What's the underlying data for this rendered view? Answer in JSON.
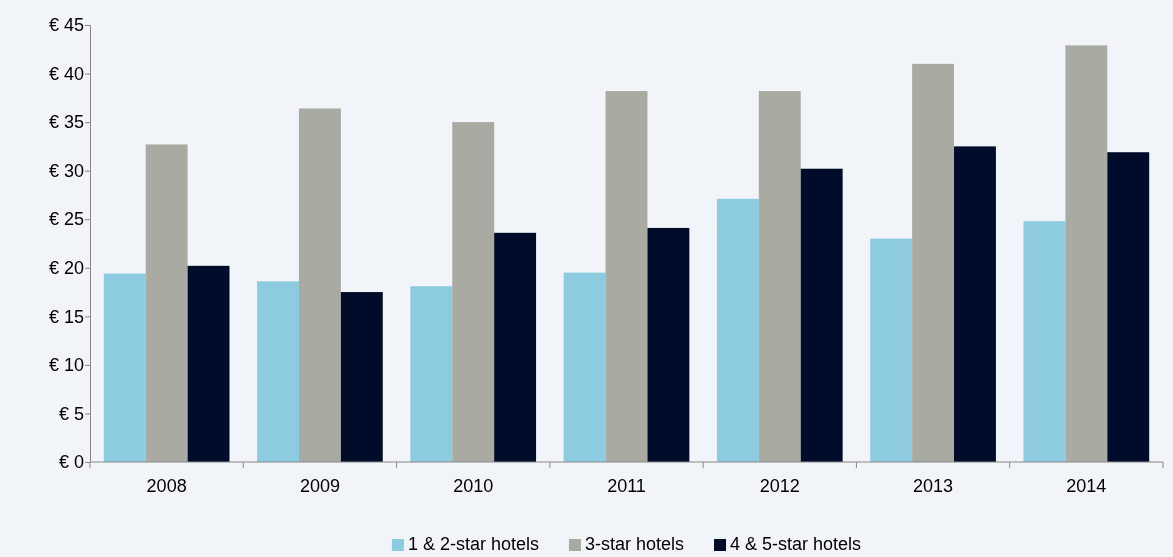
{
  "chart_data": {
    "type": "bar",
    "categories": [
      "2008",
      "2009",
      "2010",
      "2011",
      "2012",
      "2013",
      "2014"
    ],
    "series": [
      {
        "name": "1 & 2-star hotels",
        "color": "#8ccbe0",
        "values": [
          19.4,
          18.6,
          18.1,
          19.5,
          27.1,
          23.0,
          24.8
        ]
      },
      {
        "name": "3-star hotels",
        "color": "#a9aba3",
        "values": [
          32.7,
          36.4,
          35.0,
          38.2,
          38.2,
          41.0,
          42.9
        ]
      },
      {
        "name": "4 & 5-star hotels",
        "color": "#000c2a",
        "values": [
          20.2,
          17.5,
          23.6,
          24.1,
          30.2,
          32.5,
          31.9
        ]
      }
    ],
    "ylim": [
      0,
      45
    ],
    "yticks": [
      {
        "value": 0,
        "label": "€ 0"
      },
      {
        "value": 5,
        "label": "€ 5"
      },
      {
        "value": 10,
        "label": "€ 10"
      },
      {
        "value": 15,
        "label": "€ 15"
      },
      {
        "value": 20,
        "label": "€ 20"
      },
      {
        "value": 25,
        "label": "€ 25"
      },
      {
        "value": 30,
        "label": "€ 30"
      },
      {
        "value": 35,
        "label": "€ 35"
      },
      {
        "value": 40,
        "label": "€ 40"
      },
      {
        "value": 45,
        "label": "€ 45"
      }
    ],
    "grid": false,
    "legend": "bottom"
  }
}
